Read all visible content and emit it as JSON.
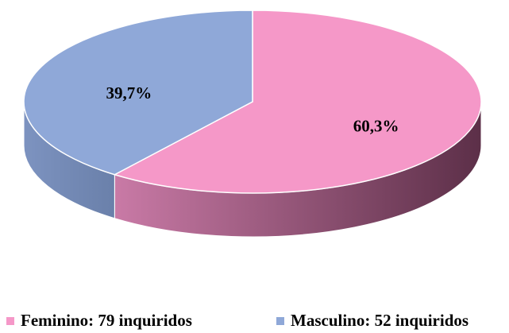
{
  "chart_data": {
    "type": "pie",
    "categories": [
      "Feminino: 79 inquiridos",
      "Masculino: 52 inquiridos"
    ],
    "values": [
      60.3,
      39.7
    ],
    "value_labels": [
      "60,3%",
      "39,7%"
    ],
    "colors": [
      "#f598c8",
      "#8fa8d8"
    ],
    "side_colors": [
      [
        "#c97aa6",
        "#5c2f48"
      ],
      [
        "#7d93c0",
        "#6a80aa"
      ]
    ],
    "legend": "bottom"
  }
}
